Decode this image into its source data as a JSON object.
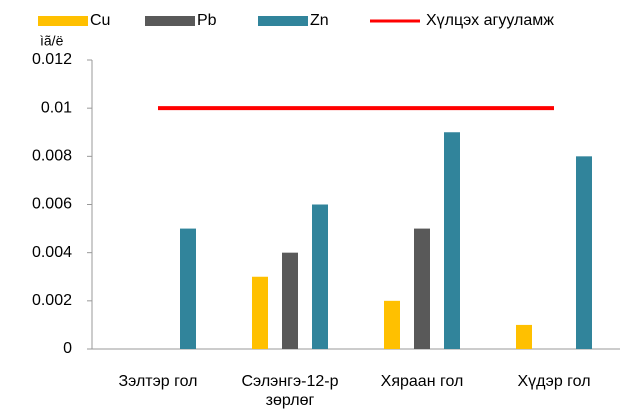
{
  "chart_data": {
    "type": "bar",
    "y_label": "ìã/ë",
    "categories": [
      "Зэлтэр гол",
      "Сэлэнгэ-12-р зөрлөг",
      "Хяраан гол",
      "Хүдэр гол"
    ],
    "series": [
      {
        "name": "Cu",
        "color": "#ffc000",
        "values": [
          null,
          0.003,
          0.002,
          0.001
        ]
      },
      {
        "name": "Pb",
        "color": "#595959",
        "values": [
          null,
          0.004,
          0.005,
          null
        ]
      },
      {
        "name": "Zn",
        "color": "#31849b",
        "values": [
          0.005,
          0.006,
          0.009,
          0.008
        ]
      },
      {
        "name": "Хүлцэх агууламж",
        "type": "line",
        "color": "#ff0000",
        "values": [
          0.01,
          0.01,
          0.01,
          0.01
        ]
      }
    ],
    "ylim": [
      0,
      0.012
    ],
    "yticks": [
      0,
      0.002,
      0.004,
      0.006,
      0.008,
      0.01,
      0.012
    ]
  }
}
